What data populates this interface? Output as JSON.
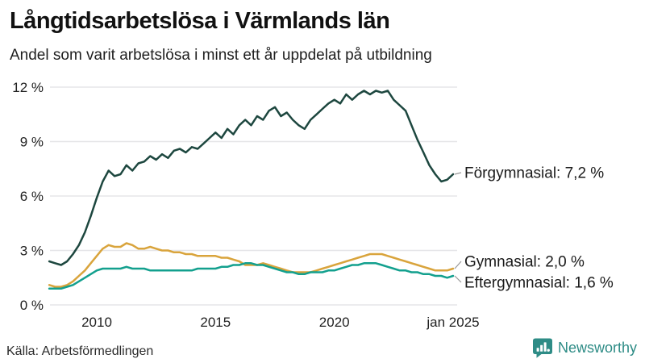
{
  "header": {
    "title": "Långtidsarbetslösa i Värmlands län",
    "subtitle": "Andel som varit arbetslösa i minst ett år uppdelat på utbildning"
  },
  "footer": {
    "source": "Källa: Arbetsförmedlingen",
    "brand": "Newsworthy"
  },
  "colors": {
    "forgymnasial": "#1d473f",
    "gymnasial": "#d9a43c",
    "eftergymnasial": "#13a08e",
    "grid": "#e5e5e8",
    "leader": "#999999",
    "brand": "#2e8c86",
    "text": "#1a1a1a"
  },
  "icons": {
    "brand_logo": "newsworthy-speech-bubble-bar-chart"
  },
  "chart_data": {
    "type": "line",
    "title": "Långtidsarbetslösa i Värmlands län",
    "subtitle": "Andel som varit arbetslösa i minst ett år uppdelat på utbildning",
    "xlabel": "",
    "ylabel": "",
    "unit": "%",
    "xlim": [
      2008,
      2025
    ],
    "ylim": [
      0,
      12
    ],
    "grid": "horizontal",
    "legend_position": "end-of-line annotations",
    "x_start": 2008,
    "x_step": 0.25,
    "y_ticks": [
      {
        "value": 0,
        "label": "0 %"
      },
      {
        "value": 3,
        "label": "3 %"
      },
      {
        "value": 6,
        "label": "6 %"
      },
      {
        "value": 9,
        "label": "9 %"
      },
      {
        "value": 12,
        "label": "12 %"
      }
    ],
    "x_ticks": [
      {
        "value": 2010,
        "label": "2010"
      },
      {
        "value": 2015,
        "label": "2015"
      },
      {
        "value": 2020,
        "label": "2020"
      },
      {
        "value": 2025,
        "label": "jan 2025"
      }
    ],
    "series": [
      {
        "name": "Förgymnasial",
        "annotation": "Förgymnasial: 7,2 %",
        "final_value": 7.2,
        "color": "#1d473f",
        "values": [
          2.4,
          2.3,
          2.2,
          2.4,
          2.8,
          3.3,
          4.0,
          4.9,
          5.9,
          6.8,
          7.4,
          7.1,
          7.2,
          7.7,
          7.4,
          7.8,
          7.9,
          8.2,
          8.0,
          8.3,
          8.1,
          8.5,
          8.6,
          8.4,
          8.7,
          8.6,
          8.9,
          9.2,
          9.5,
          9.2,
          9.7,
          9.4,
          9.9,
          10.2,
          9.9,
          10.4,
          10.2,
          10.7,
          10.9,
          10.4,
          10.6,
          10.2,
          9.9,
          9.7,
          10.2,
          10.5,
          10.8,
          11.1,
          11.3,
          11.1,
          11.6,
          11.3,
          11.6,
          11.8,
          11.6,
          11.8,
          11.7,
          11.8,
          11.3,
          11.0,
          10.7,
          9.9,
          9.1,
          8.4,
          7.7,
          7.2,
          6.8,
          6.9,
          7.2
        ]
      },
      {
        "name": "Gymnasial",
        "annotation": "Gymnasial: 2,0 %",
        "final_value": 2.0,
        "color": "#d9a43c",
        "values": [
          1.1,
          1.0,
          1.0,
          1.1,
          1.3,
          1.6,
          1.9,
          2.3,
          2.7,
          3.1,
          3.3,
          3.2,
          3.2,
          3.4,
          3.3,
          3.1,
          3.1,
          3.2,
          3.1,
          3.0,
          3.0,
          2.9,
          2.9,
          2.8,
          2.8,
          2.7,
          2.7,
          2.7,
          2.7,
          2.6,
          2.6,
          2.5,
          2.4,
          2.2,
          2.2,
          2.2,
          2.3,
          2.2,
          2.1,
          2.0,
          1.9,
          1.8,
          1.8,
          1.8,
          1.8,
          1.9,
          2.0,
          2.1,
          2.2,
          2.3,
          2.4,
          2.5,
          2.6,
          2.7,
          2.8,
          2.8,
          2.8,
          2.7,
          2.6,
          2.5,
          2.4,
          2.3,
          2.2,
          2.1,
          2.0,
          1.9,
          1.9,
          1.9,
          2.0
        ]
      },
      {
        "name": "Eftergymnasial",
        "annotation": "Eftergymnasial: 1,6 %",
        "final_value": 1.6,
        "color": "#13a08e",
        "values": [
          0.9,
          0.9,
          0.9,
          1.0,
          1.1,
          1.3,
          1.5,
          1.7,
          1.9,
          2.0,
          2.0,
          2.0,
          2.0,
          2.1,
          2.0,
          2.0,
          2.0,
          1.9,
          1.9,
          1.9,
          1.9,
          1.9,
          1.9,
          1.9,
          1.9,
          2.0,
          2.0,
          2.0,
          2.0,
          2.1,
          2.1,
          2.2,
          2.2,
          2.3,
          2.3,
          2.2,
          2.2,
          2.1,
          2.0,
          1.9,
          1.8,
          1.8,
          1.7,
          1.7,
          1.8,
          1.8,
          1.8,
          1.9,
          1.9,
          2.0,
          2.1,
          2.2,
          2.2,
          2.3,
          2.3,
          2.3,
          2.2,
          2.1,
          2.0,
          1.9,
          1.9,
          1.8,
          1.8,
          1.7,
          1.7,
          1.6,
          1.6,
          1.5,
          1.6
        ]
      }
    ]
  }
}
